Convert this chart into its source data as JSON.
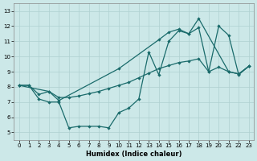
{
  "xlabel": "Humidex (Indice chaleur)",
  "bg_color": "#cce8e8",
  "line_color": "#1a6b6b",
  "grid_color": "#afd0d0",
  "xlim": [
    -0.5,
    23.5
  ],
  "ylim": [
    4.5,
    13.5
  ],
  "xticks": [
    0,
    1,
    2,
    3,
    4,
    5,
    6,
    7,
    8,
    9,
    10,
    11,
    12,
    13,
    14,
    15,
    16,
    17,
    18,
    19,
    20,
    21,
    22,
    23
  ],
  "yticks": [
    5,
    6,
    7,
    8,
    9,
    10,
    11,
    12,
    13
  ],
  "line1_x": [
    0,
    1,
    2,
    3,
    4,
    5,
    6,
    7,
    8,
    9,
    10,
    11,
    12,
    13,
    14,
    15,
    16,
    17,
    18,
    19,
    20,
    21,
    22,
    23
  ],
  "line1_y": [
    8.1,
    8.1,
    7.2,
    7.0,
    7.0,
    5.3,
    5.4,
    5.4,
    5.4,
    5.3,
    6.3,
    6.6,
    7.2,
    10.3,
    8.8,
    11.0,
    11.7,
    11.5,
    11.9,
    9.0,
    12.0,
    11.4,
    8.8,
    9.35
  ],
  "line2_x": [
    0,
    3,
    4,
    10,
    14,
    15,
    16,
    17,
    18,
    21,
    22,
    23
  ],
  "line2_y": [
    8.1,
    7.7,
    7.1,
    9.2,
    11.1,
    11.6,
    11.8,
    11.5,
    12.5,
    9.0,
    8.85,
    9.35
  ],
  "line3_x": [
    0,
    1,
    2,
    3,
    4,
    5,
    6,
    7,
    8,
    9,
    10,
    11,
    12,
    13,
    14,
    15,
    16,
    17,
    18,
    19,
    20,
    21,
    22,
    23
  ],
  "line3_y": [
    8.1,
    8.1,
    7.5,
    7.7,
    7.3,
    7.3,
    7.4,
    7.55,
    7.7,
    7.9,
    8.1,
    8.3,
    8.6,
    8.9,
    9.2,
    9.4,
    9.6,
    9.7,
    9.85,
    9.0,
    9.3,
    9.0,
    8.85,
    9.35
  ]
}
